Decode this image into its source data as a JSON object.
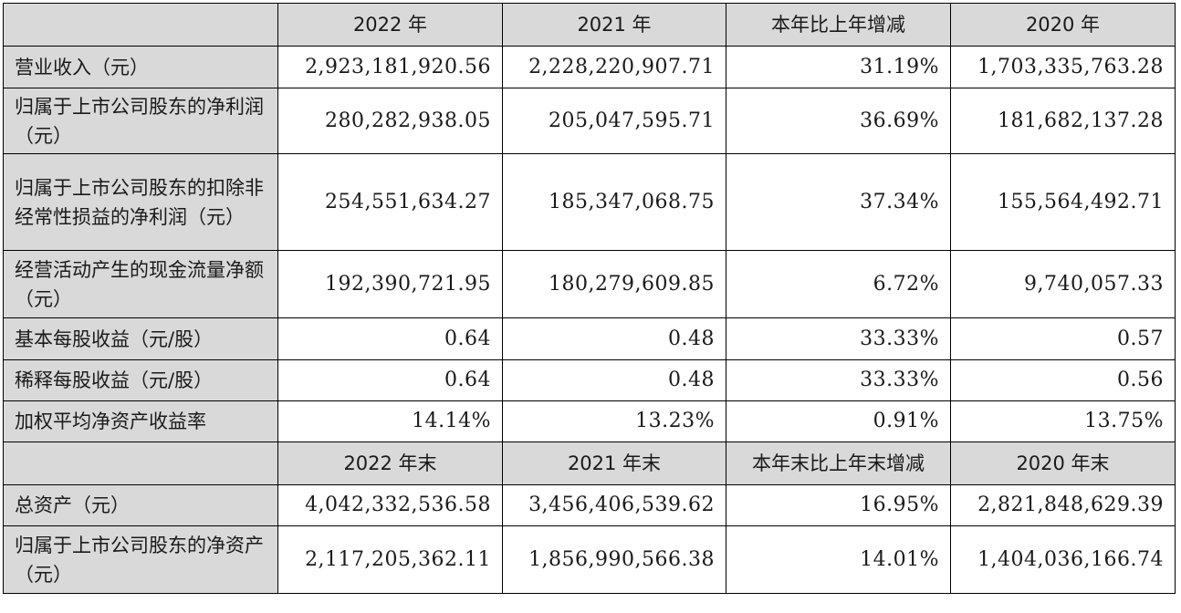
{
  "table1": {
    "headers": [
      "2022 年",
      "2021 年",
      "本年比上年增减",
      "2020 年"
    ],
    "rows": [
      {
        "label": "营业收入（元）",
        "values": [
          "2,923,181,920.56",
          "2,228,220,907.71",
          "31.19%",
          "1,703,335,763.28"
        ]
      },
      {
        "label": "归属于上市公司股东的净利润（元）",
        "values": [
          "280,282,938.05",
          "205,047,595.71",
          "36.69%",
          "181,682,137.28"
        ]
      },
      {
        "label": "归属于上市公司股东的扣除非经常性损益的净利润（元）",
        "values": [
          "254,551,634.27",
          "185,347,068.75",
          "37.34%",
          "155,564,492.71"
        ]
      },
      {
        "label": "经营活动产生的现金流量净额（元）",
        "values": [
          "192,390,721.95",
          "180,279,609.85",
          "6.72%",
          "9,740,057.33"
        ]
      },
      {
        "label": "基本每股收益（元/股）",
        "values": [
          "0.64",
          "0.48",
          "33.33%",
          "0.57"
        ]
      },
      {
        "label": "稀释每股收益（元/股）",
        "values": [
          "0.64",
          "0.48",
          "33.33%",
          "0.56"
        ]
      },
      {
        "label": "加权平均净资产收益率",
        "values": [
          "14.14%",
          "13.23%",
          "0.91%",
          "13.75%"
        ]
      }
    ]
  },
  "table2": {
    "headers": [
      "2022 年末",
      "2021 年末",
      "本年末比上年末增减",
      "2020 年末"
    ],
    "rows": [
      {
        "label": "总资产（元）",
        "values": [
          "4,042,332,536.58",
          "3,456,406,539.62",
          "16.95%",
          "2,821,848,629.39"
        ]
      },
      {
        "label": "归属于上市公司股东的净资产（元）",
        "values": [
          "2,117,205,362.11",
          "1,856,990,566.38",
          "14.01%",
          "1,404,036,166.74"
        ]
      }
    ]
  }
}
